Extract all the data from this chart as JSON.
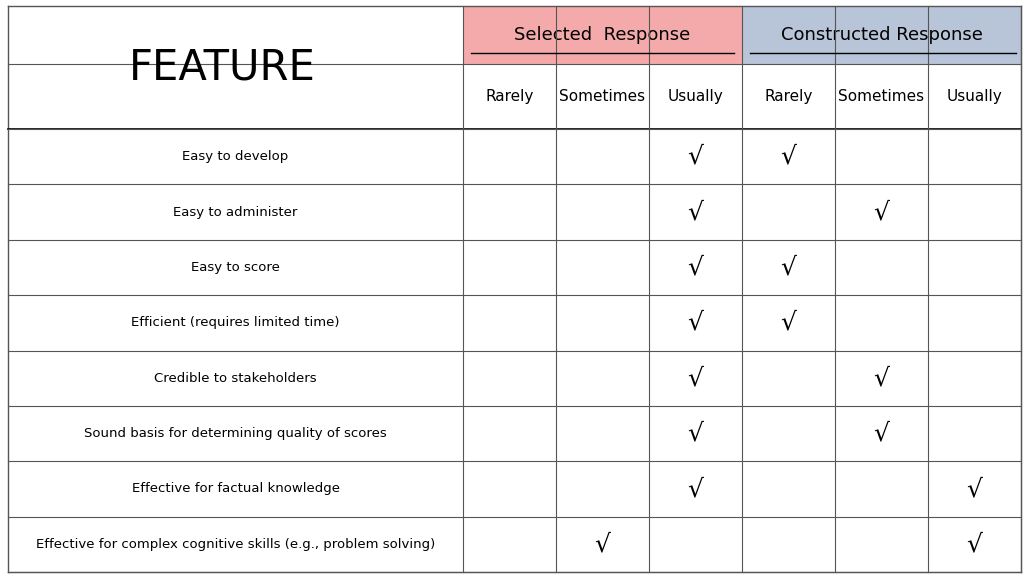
{
  "title_feature": "FEATURE",
  "col_group1": "Selected  Response",
  "col_group2": "Constructed Response",
  "col_headers": [
    "Rarely",
    "Sometimes",
    "Usually",
    "Rarely",
    "Sometimes",
    "Usually"
  ],
  "rows": [
    "Easy to develop",
    "Easy to administer",
    "Easy to score",
    "Efficient (requires limited time)",
    "Credible to stakeholders",
    "Sound basis for determining quality of scores",
    "Effective for factual knowledge",
    "Effective for complex cognitive skills (e.g., problem solving)"
  ],
  "checks": [
    [
      0,
      0,
      1,
      1,
      0,
      0
    ],
    [
      0,
      0,
      1,
      0,
      1,
      0
    ],
    [
      0,
      0,
      1,
      1,
      0,
      0
    ],
    [
      0,
      0,
      1,
      1,
      0,
      0
    ],
    [
      0,
      0,
      1,
      0,
      1,
      0
    ],
    [
      0,
      0,
      1,
      0,
      1,
      0
    ],
    [
      0,
      0,
      1,
      0,
      0,
      1
    ],
    [
      0,
      1,
      0,
      0,
      0,
      1
    ]
  ],
  "header_group1_color": "#F4AAAA",
  "header_group2_color": "#B8C4D8",
  "background_color": "#FFFFFF",
  "text_color": "#000000",
  "line_color": "#555555",
  "figsize": [
    10.24,
    5.74
  ],
  "dpi": 100
}
